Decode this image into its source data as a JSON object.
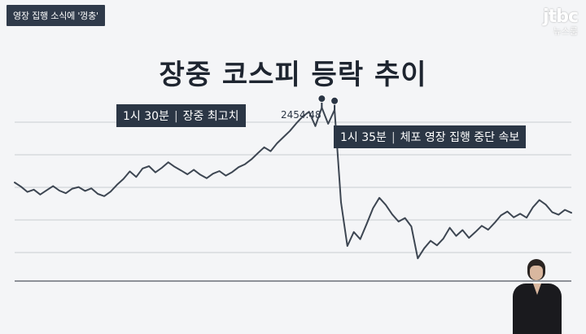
{
  "header": {
    "tag": "영장 집행 소식에 '껑충'",
    "logo_main": "jtbc",
    "logo_sub": "뉴스룸"
  },
  "colors": {
    "line": "#3d4652",
    "grid": "#c9cdd2",
    "baseline": "#6b7078",
    "callout_bg": "#2b3645",
    "background": "#f4f5f7"
  },
  "chart_data": {
    "type": "line",
    "title": "장중 코스피 등락 추이",
    "xlabel": "",
    "ylabel": "",
    "grid": true,
    "x_axis_labels_shown": false,
    "y_axis_labels_shown": false,
    "series": [
      {
        "values": [
          2431.5,
          2430.2,
          2428.6,
          2429.3,
          2427.8,
          2429.1,
          2430.4,
          2429.0,
          2428.2,
          2429.6,
          2430.1,
          2428.9,
          2429.7,
          2428.0,
          2427.3,
          2428.7,
          2430.8,
          2432.6,
          2434.9,
          2433.2,
          2435.8,
          2436.5,
          2434.6,
          2436.0,
          2437.7,
          2436.3,
          2435.2,
          2434.0,
          2435.4,
          2433.9,
          2432.8,
          2434.2,
          2435.0,
          2433.6,
          2434.7,
          2436.2,
          2437.1,
          2438.6,
          2440.5,
          2442.3,
          2441.1,
          2443.5,
          2445.4,
          2447.3,
          2449.6,
          2451.7,
          2453.2,
          2448.8,
          2454.48,
          2449.5,
          2453.8,
          2425.4,
          2412.0,
          2416.3,
          2414.1,
          2418.7,
          2423.6,
          2426.8,
          2424.6,
          2421.7,
          2419.5,
          2420.6,
          2418.0,
          2408.2,
          2411.3,
          2413.6,
          2412.2,
          2414.3,
          2417.6,
          2415.1,
          2416.9,
          2414.5,
          2416.3,
          2418.2,
          2417.0,
          2419.1,
          2421.4,
          2422.6,
          2420.8,
          2421.9,
          2420.7,
          2423.9,
          2426.1,
          2424.7,
          2422.4,
          2421.6,
          2423.1,
          2422.2
        ]
      }
    ],
    "annotations": [
      {
        "label": "1시 30분",
        "text": "장중 최고치",
        "value_label": "2454.48"
      },
      {
        "label": "1시 35분",
        "text": "체포 영장 집행 중단 속보"
      }
    ]
  }
}
